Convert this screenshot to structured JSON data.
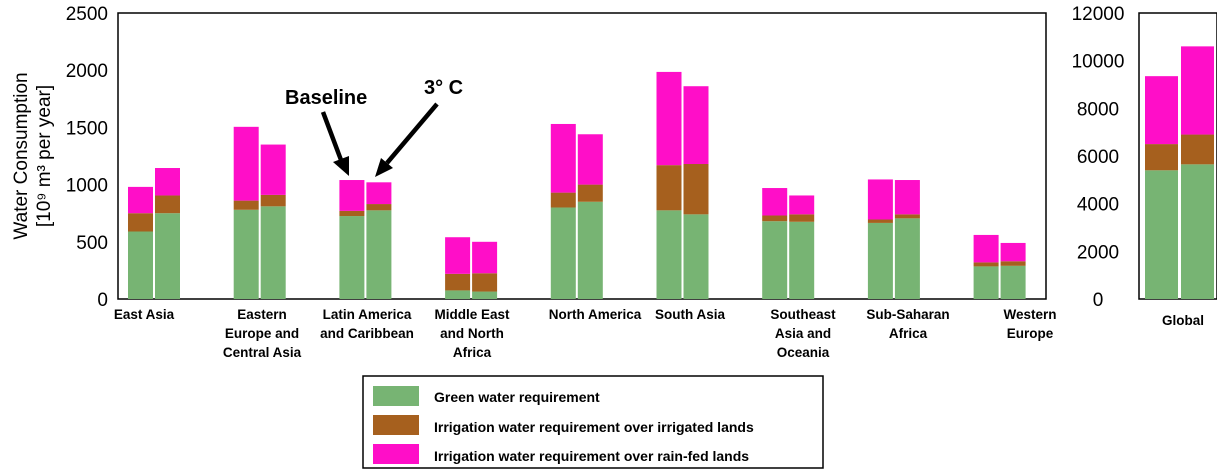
{
  "chart_data": [
    {
      "type": "bar",
      "stacked": true,
      "ylabel": "Water Consumption",
      "ylabel_units": "[10⁹ m³ per year]",
      "ylim": [
        0,
        2500
      ],
      "yticks": [
        "0",
        "500",
        "1000",
        "1500",
        "2000",
        "2500"
      ],
      "categories": [
        {
          "lines": [
            "East Asia"
          ]
        },
        {
          "lines": [
            "Eastern",
            "Europe and",
            "Central Asia"
          ]
        },
        {
          "lines": [
            "Latin America",
            "and Caribbean"
          ]
        },
        {
          "lines": [
            "Middle East",
            "and North",
            "Africa"
          ]
        },
        {
          "lines": [
            "North America"
          ]
        },
        {
          "lines": [
            "South Asia"
          ]
        },
        {
          "lines": [
            "Southeast",
            "Asia and",
            "Oceania"
          ]
        },
        {
          "lines": [
            "Sub-Saharan",
            "Africa"
          ]
        },
        {
          "lines": [
            "Western",
            "Europe"
          ]
        }
      ],
      "scenarios": [
        "Baseline",
        "3° C"
      ],
      "series": [
        {
          "name": "Green water requirement",
          "baseline": [
            590,
            780,
            725,
            75,
            800,
            775,
            680,
            665,
            285
          ],
          "warming_3c": [
            750,
            810,
            775,
            65,
            850,
            740,
            675,
            705,
            290
          ]
        },
        {
          "name": "Irrigation water requirement over irrigated lands",
          "baseline": [
            160,
            80,
            45,
            145,
            130,
            395,
            50,
            30,
            35
          ],
          "warming_3c": [
            155,
            100,
            55,
            160,
            150,
            440,
            65,
            35,
            40
          ]
        },
        {
          "name": "Irrigation water requirement over rain-fed lands",
          "baseline": [
            230,
            645,
            270,
            320,
            600,
            815,
            240,
            350,
            240
          ],
          "warming_3c": [
            240,
            440,
            190,
            275,
            440,
            680,
            165,
            300,
            160
          ]
        }
      ]
    },
    {
      "type": "bar",
      "stacked": true,
      "ylim": [
        0,
        12000
      ],
      "yticks": [
        "0",
        "2000",
        "4000",
        "6000",
        "8000",
        "10000",
        "12000"
      ],
      "categories": [
        {
          "lines": [
            "Global"
          ]
        }
      ],
      "scenarios": [
        "Baseline",
        "3° C"
      ],
      "series": [
        {
          "name": "Green water requirement",
          "baseline": [
            5400
          ],
          "warming_3c": [
            5650
          ]
        },
        {
          "name": "Irrigation water requirement over irrigated lands",
          "baseline": [
            1100
          ],
          "warming_3c": [
            1250
          ]
        },
        {
          "name": "Irrigation water requirement over rain-fed lands",
          "baseline": [
            2850
          ],
          "warming_3c": [
            3700
          ]
        }
      ]
    }
  ],
  "annotations": [
    {
      "text": "Baseline",
      "target": "Latin America and Caribbean – baseline bar"
    },
    {
      "text": "3° C",
      "target": "Latin America and Caribbean – 3° C bar"
    }
  ],
  "legend": [
    {
      "label": "Green water requirement",
      "color": "#77b473"
    },
    {
      "label": "Irrigation water requirement over irrigated lands",
      "color": "#a6601e"
    },
    {
      "label": "Irrigation water requirement over rain-fed lands",
      "color": "#ff0ec8"
    }
  ],
  "colors": {
    "green": "#77b473",
    "brown": "#a6601e",
    "magenta": "#ff0ec8"
  }
}
